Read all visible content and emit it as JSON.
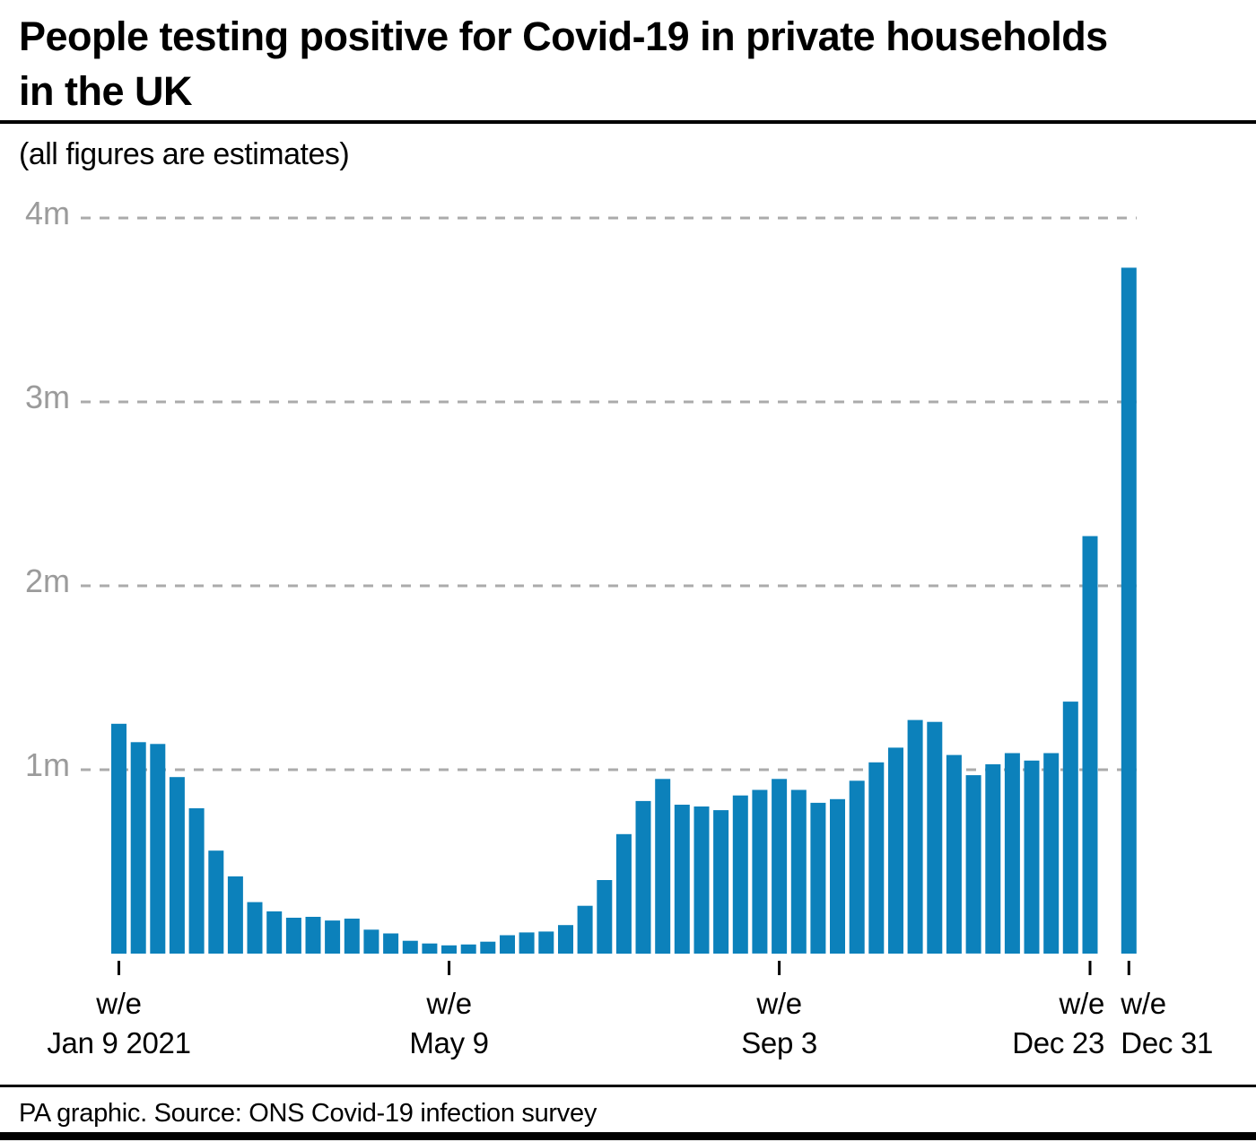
{
  "header": {
    "title": "People testing positive for Covid-19 in private households in the UK",
    "subtitle": "(all figures are estimates)"
  },
  "footer": {
    "source": "PA graphic. Source: ONS Covid-19 infection survey"
  },
  "colors": {
    "bar": "#0C81BB",
    "gridline": "#ABABAB",
    "y_axis_label": "#9B9B9B",
    "text": "#000000"
  },
  "chart_data": {
    "type": "bar",
    "title": "People testing positive for Covid-19 in private households in the UK",
    "subtitle": "(all figures are estimates)",
    "source": "PA graphic. Source: ONS Covid-19 infection survey",
    "unit": "millions of people",
    "ylim": [
      0,
      4.2
    ],
    "grid": "horizontal dashed",
    "legend": "none",
    "values": [
      1.25,
      1.15,
      1.14,
      0.96,
      0.79,
      0.56,
      0.42,
      0.28,
      0.23,
      0.195,
      0.2,
      0.18,
      0.19,
      0.13,
      0.11,
      0.07,
      0.055,
      0.045,
      0.05,
      0.065,
      0.1,
      0.115,
      0.12,
      0.155,
      0.26,
      0.4,
      0.65,
      0.83,
      0.95,
      0.81,
      0.8,
      0.78,
      0.86,
      0.89,
      0.95,
      0.89,
      0.82,
      0.84,
      0.94,
      1.04,
      1.12,
      1.27,
      1.26,
      1.08,
      0.97,
      1.03,
      1.09,
      1.05,
      1.09,
      1.37,
      2.27,
      3.73
    ],
    "gap_before_last_bar": true,
    "yticks": [
      {
        "value": 1,
        "label": "1m"
      },
      {
        "value": 2,
        "label": "2m"
      },
      {
        "value": 3,
        "label": "3m"
      },
      {
        "value": 4,
        "label": "4m"
      }
    ],
    "xticks": [
      {
        "bar_index": 0,
        "line1": "w/e",
        "line2": "Jan 9 2021",
        "align": "center"
      },
      {
        "bar_index": 17,
        "line1": "w/e",
        "line2": "May 9",
        "align": "center"
      },
      {
        "bar_index": 34,
        "line1": "w/e",
        "line2": "Sep 3",
        "align": "center"
      },
      {
        "bar_index": 50,
        "line1": "w/e",
        "line2": "Dec 23",
        "align": "right"
      },
      {
        "bar_index": 51,
        "line1": "w/e",
        "line2": "Dec 31",
        "align": "left"
      }
    ]
  }
}
